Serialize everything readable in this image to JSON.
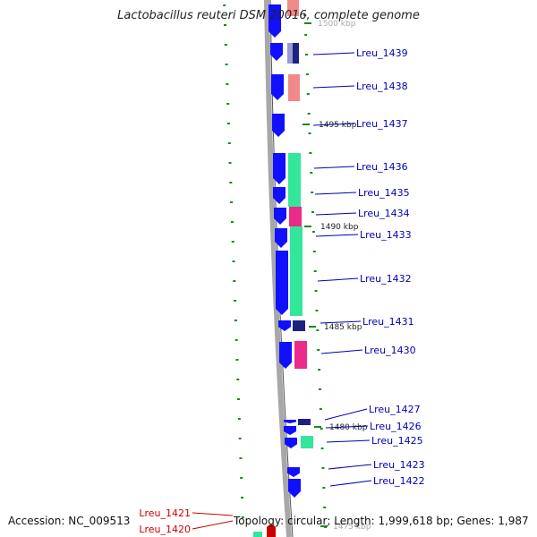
{
  "header": {
    "title": "Lactobacillus reuteri DSM 20016, complete genome"
  },
  "footer": {
    "accession": "Accession: NC_009513",
    "summary": "Topology: circular; Length: 1,999,618 bp; Genes: 1,987"
  },
  "colors": {
    "cds": "#1010ff",
    "backbone": "#a8a8a8",
    "tick": "#1a8a1a",
    "label_blue": "#0000b0",
    "label_red": "#cc0000",
    "cog_salmon": "#f08a8a",
    "cog_green": "#33e69a",
    "cog_magenta": "#ec2a8a",
    "cog_navy": "#1c2280",
    "cog_lavender": "#9a9ad2"
  },
  "ticks": {
    "labels": [
      "1500 kbp",
      "1495 kbp",
      "1490 kbp",
      "1485 kbp",
      "1480 kbp",
      "1475 kbp"
    ]
  },
  "genes": [
    {
      "label": "Lreu_1439",
      "color": "blue"
    },
    {
      "label": "Lreu_1438",
      "color": "blue"
    },
    {
      "label": "Lreu_1437",
      "color": "blue"
    },
    {
      "label": "Lreu_1436",
      "color": "blue"
    },
    {
      "label": "Lreu_1435",
      "color": "blue"
    },
    {
      "label": "Lreu_1434",
      "color": "blue"
    },
    {
      "label": "Lreu_1433",
      "color": "blue"
    },
    {
      "label": "Lreu_1432",
      "color": "blue"
    },
    {
      "label": "Lreu_1431",
      "color": "blue"
    },
    {
      "label": "Lreu_1430",
      "color": "blue"
    },
    {
      "label": "Lreu_1427",
      "color": "blue"
    },
    {
      "label": "Lreu_1426",
      "color": "blue"
    },
    {
      "label": "Lreu_1425",
      "color": "blue"
    },
    {
      "label": "Lreu_1423",
      "color": "blue"
    },
    {
      "label": "Lreu_1422",
      "color": "blue"
    },
    {
      "label": "Lreu_1421",
      "color": "red"
    },
    {
      "label": "Lreu_1420",
      "color": "red"
    }
  ]
}
